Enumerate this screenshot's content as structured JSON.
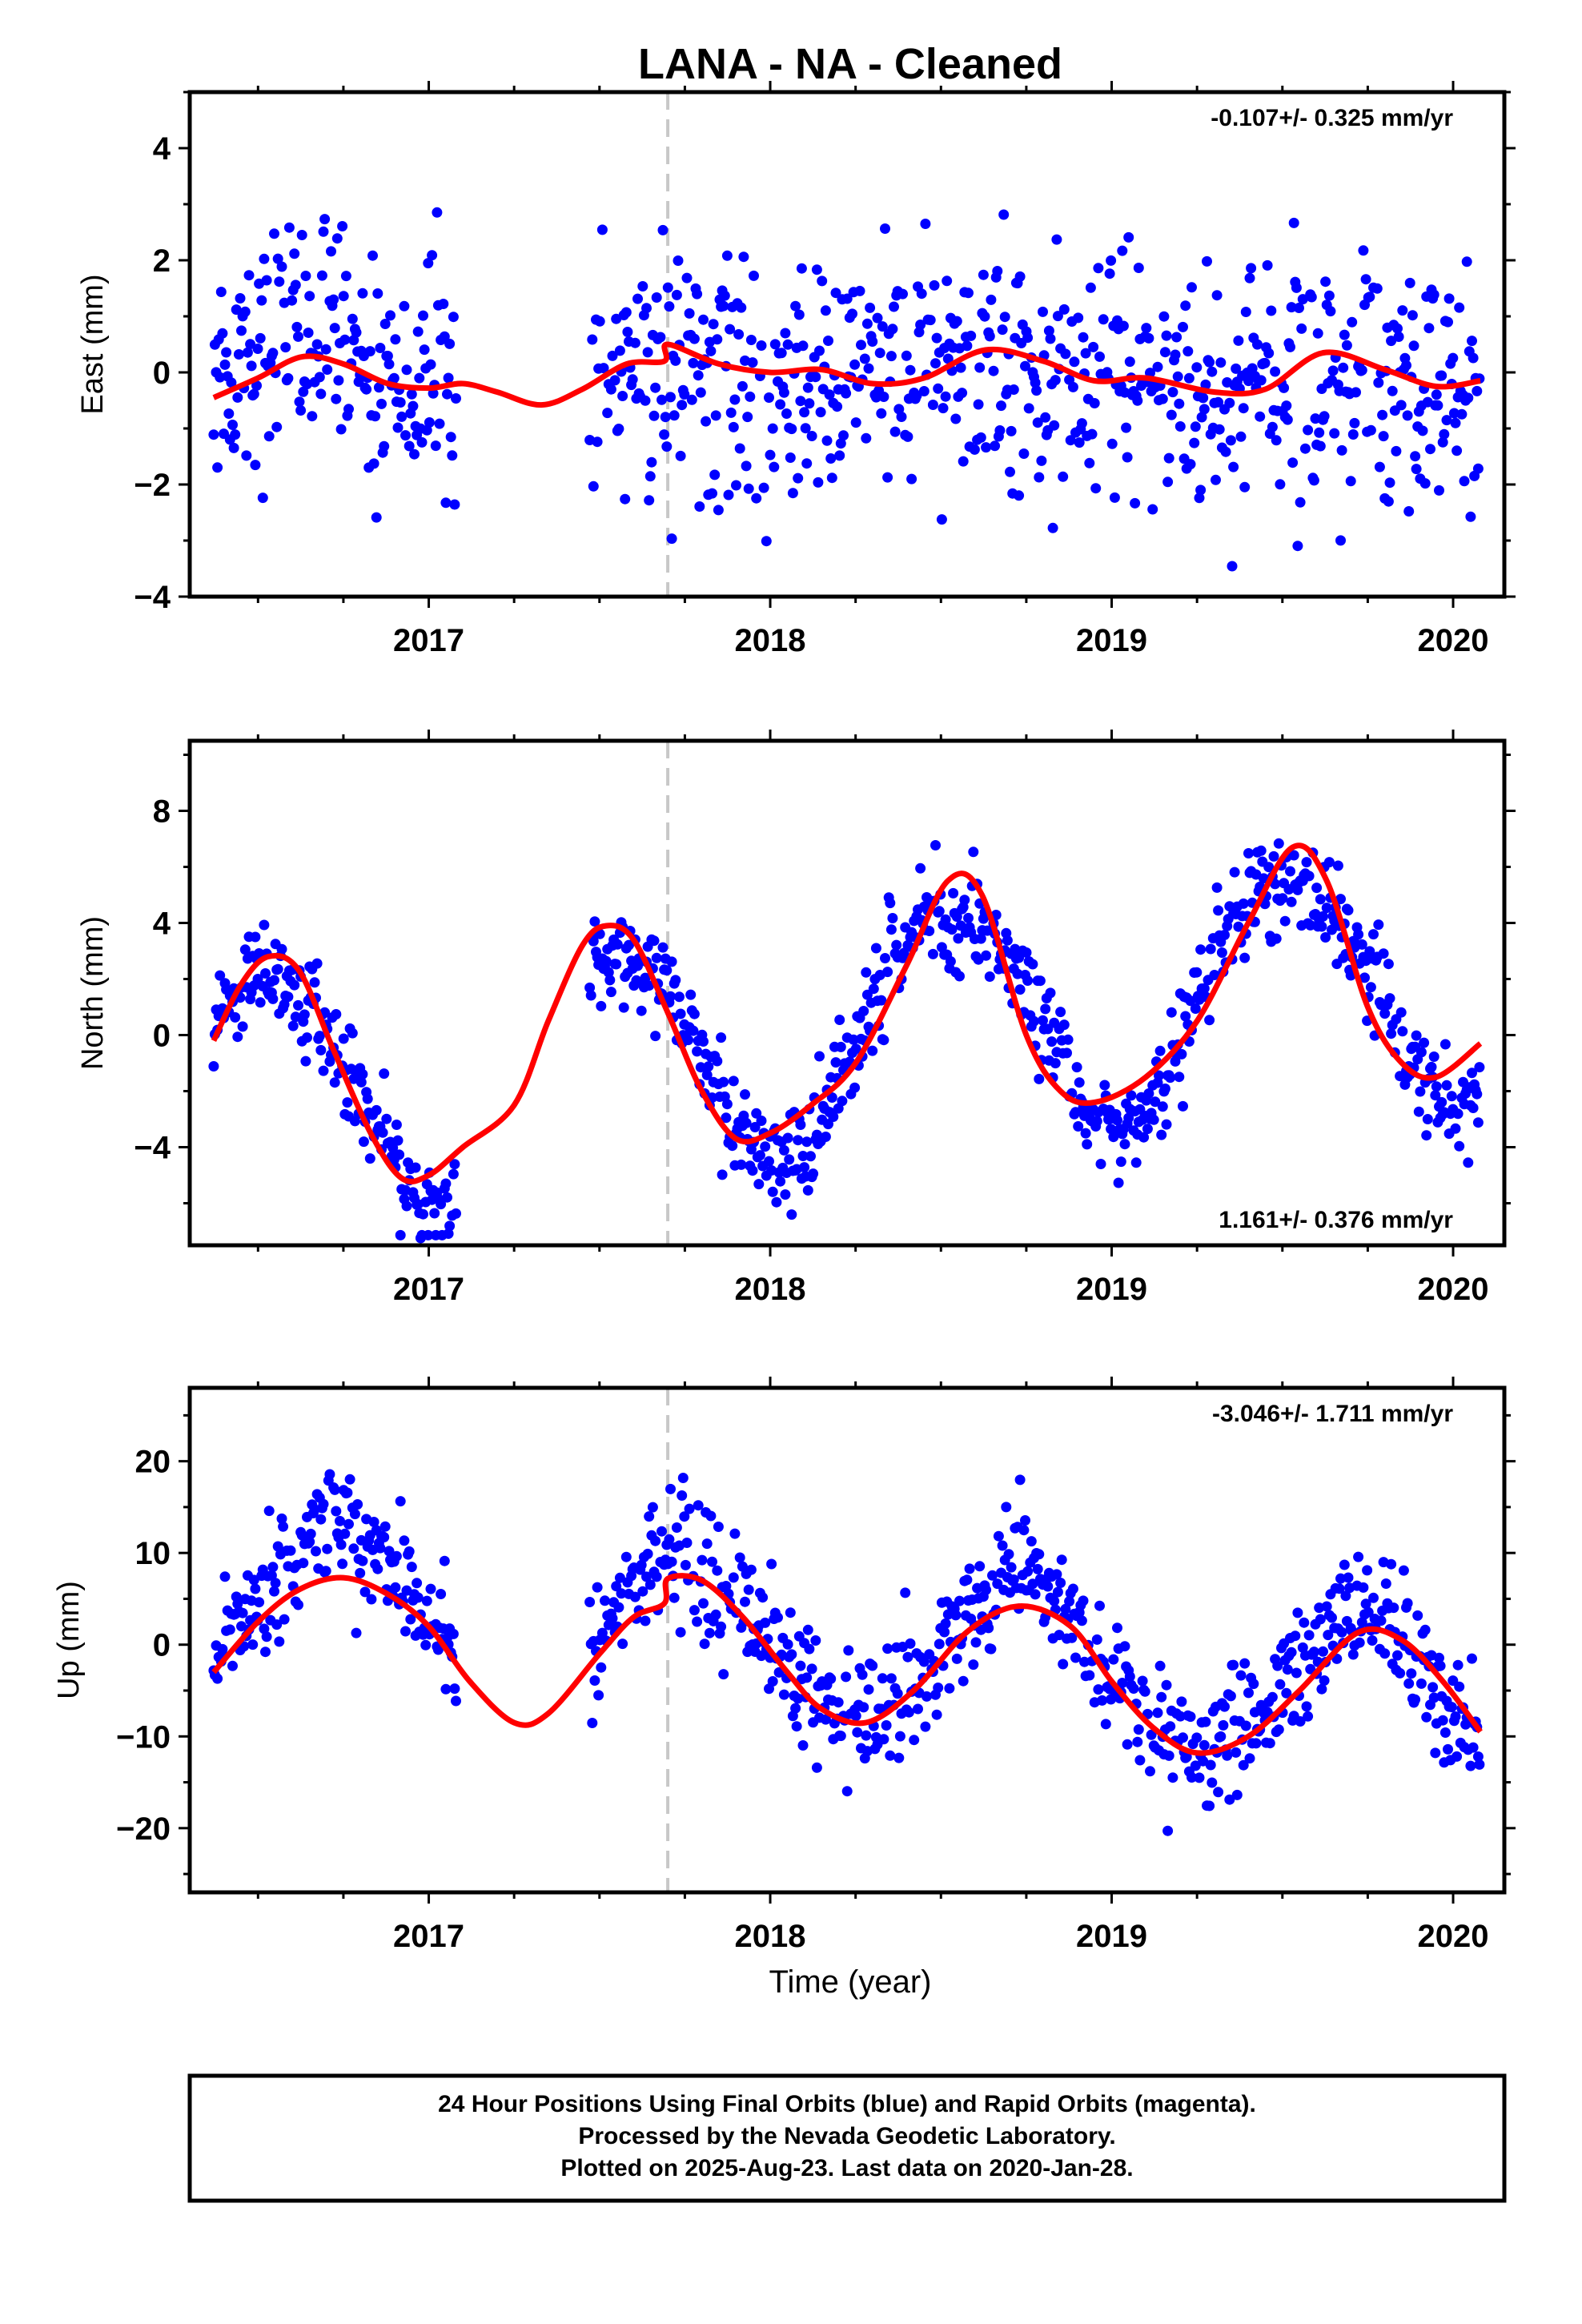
{
  "chart_data": {
    "title": "LANA  - NA - Cleaned",
    "type": "scatter",
    "x_ticks": [
      "2017",
      "2018",
      "2019",
      "2020"
    ],
    "xlim": [
      2016.3,
      2020.15
    ],
    "xlabel": "Time (year)",
    "offset_epoch": 2017.7,
    "offset_line_color": "#c8c8c8",
    "point_color": "#0000ff",
    "fit_color": "#ff0000",
    "data_span": [
      2016.37,
      2020.08
    ],
    "gap": [
      2017.08,
      2017.47
    ],
    "panels": [
      {
        "id": "east",
        "ylabel": "East (mm)",
        "ylim": [
          -4,
          5
        ],
        "yticks": [
          4,
          2,
          0,
          -2,
          -4
        ],
        "rate_label": "-0.107+/- 0.325 mm/yr",
        "rate_position": "top-right",
        "model": {
          "offset": -0.05,
          "trend": -0.107,
          "annual_amp": 0.25,
          "annual_peak": 0.6,
          "semiannual_amp": 0.15,
          "semiannual_phase": 0.1,
          "scatter": 1.1
        },
        "fit": [
          [
            2016.37,
            -0.45
          ],
          [
            2016.5,
            -0.1
          ],
          [
            2016.63,
            0.28
          ],
          [
            2016.75,
            0.15
          ],
          [
            2016.88,
            -0.2
          ],
          [
            2017.0,
            -0.28
          ],
          [
            2017.1,
            -0.2
          ],
          [
            2017.2,
            -0.35
          ],
          [
            2017.33,
            -0.58
          ],
          [
            2017.45,
            -0.3
          ],
          [
            2017.58,
            0.15
          ],
          [
            2017.69,
            0.2
          ],
          [
            2017.7,
            0.5
          ],
          [
            2017.85,
            0.15
          ],
          [
            2018.0,
            0.0
          ],
          [
            2018.15,
            0.05
          ],
          [
            2018.3,
            -0.2
          ],
          [
            2018.45,
            -0.1
          ],
          [
            2018.63,
            0.4
          ],
          [
            2018.8,
            0.2
          ],
          [
            2018.95,
            -0.15
          ],
          [
            2019.1,
            -0.1
          ],
          [
            2019.3,
            -0.35
          ],
          [
            2019.45,
            -0.3
          ],
          [
            2019.62,
            0.35
          ],
          [
            2019.8,
            0.05
          ],
          [
            2019.95,
            -0.25
          ],
          [
            2020.08,
            -0.15
          ]
        ]
      },
      {
        "id": "north",
        "ylabel": "North (mm)",
        "ylim": [
          -7.5,
          10.5
        ],
        "yticks": [
          8,
          4,
          0,
          -4
        ],
        "rate_label": "1.161+/- 0.376 mm/yr",
        "rate_position": "bottom-right",
        "model": {
          "offset": 0.0,
          "trend": 1.161,
          "annual_amp": 4.2,
          "annual_peak": 0.52,
          "semiannual_amp": 0.4,
          "semiannual_phase": 0.3,
          "scatter": 0.9
        },
        "fit": [
          [
            2016.37,
            -0.2
          ],
          [
            2016.45,
            1.8
          ],
          [
            2016.53,
            2.8
          ],
          [
            2016.62,
            2.3
          ],
          [
            2016.72,
            -0.5
          ],
          [
            2016.83,
            -3.5
          ],
          [
            2016.92,
            -5.1
          ],
          [
            2017.0,
            -5.0
          ],
          [
            2017.1,
            -4.0
          ],
          [
            2017.25,
            -2.5
          ],
          [
            2017.35,
            0.5
          ],
          [
            2017.45,
            3.2
          ],
          [
            2017.52,
            3.9
          ],
          [
            2017.6,
            3.4
          ],
          [
            2017.7,
            0.8
          ],
          [
            2017.8,
            -2.0
          ],
          [
            2017.9,
            -3.7
          ],
          [
            2018.0,
            -3.5
          ],
          [
            2018.12,
            -2.5
          ],
          [
            2018.25,
            -1.0
          ],
          [
            2018.4,
            2.5
          ],
          [
            2018.52,
            5.5
          ],
          [
            2018.62,
            5.0
          ],
          [
            2018.75,
            0.0
          ],
          [
            2018.85,
            -2.0
          ],
          [
            2018.95,
            -2.4
          ],
          [
            2019.1,
            -1.5
          ],
          [
            2019.25,
            0.5
          ],
          [
            2019.4,
            4.0
          ],
          [
            2019.53,
            6.7
          ],
          [
            2019.63,
            5.5
          ],
          [
            2019.75,
            1.0
          ],
          [
            2019.85,
            -1.0
          ],
          [
            2019.95,
            -1.5
          ],
          [
            2020.08,
            -0.3
          ]
        ]
      },
      {
        "id": "up",
        "ylabel": "Up (mm)",
        "ylim": [
          -27,
          28
        ],
        "yticks": [
          20,
          10,
          0,
          -10,
          -20
        ],
        "rate_label": "-3.046+/- 1.711 mm/yr",
        "rate_position": "top-right",
        "model": {
          "offset": 0.0,
          "trend": -3.046,
          "annual_amp": 8.0,
          "annual_peak": 0.75,
          "semiannual_amp": 0.8,
          "semiannual_phase": 0.2,
          "scatter": 3.3
        },
        "fit": [
          [
            2016.37,
            -3.0
          ],
          [
            2016.5,
            2.5
          ],
          [
            2016.62,
            6.0
          ],
          [
            2016.75,
            7.3
          ],
          [
            2016.88,
            5.5
          ],
          [
            2017.0,
            2.0
          ],
          [
            2017.12,
            -4.0
          ],
          [
            2017.25,
            -8.5
          ],
          [
            2017.35,
            -7.5
          ],
          [
            2017.5,
            -1.0
          ],
          [
            2017.6,
            3.0
          ],
          [
            2017.69,
            4.5
          ],
          [
            2017.7,
            7.2
          ],
          [
            2017.8,
            7.0
          ],
          [
            2017.92,
            3.0
          ],
          [
            2018.05,
            -3.0
          ],
          [
            2018.15,
            -7.0
          ],
          [
            2018.28,
            -8.5
          ],
          [
            2018.42,
            -5.0
          ],
          [
            2018.58,
            1.5
          ],
          [
            2018.73,
            4.2
          ],
          [
            2018.88,
            2.0
          ],
          [
            2019.0,
            -4.0
          ],
          [
            2019.12,
            -9.0
          ],
          [
            2019.25,
            -11.8
          ],
          [
            2019.4,
            -10.0
          ],
          [
            2019.55,
            -5.0
          ],
          [
            2019.72,
            1.3
          ],
          [
            2019.85,
            0.5
          ],
          [
            2019.97,
            -4.0
          ],
          [
            2020.08,
            -9.5
          ]
        ]
      }
    ]
  },
  "footer": {
    "line1": "24 Hour Positions Using Final Orbits (blue) and Rapid Orbits (magenta).",
    "line2": "Processed by the Nevada Geodetic Laboratory.",
    "line3": "Plotted on 2025-Aug-23. Last data on 2020-Jan-28."
  }
}
